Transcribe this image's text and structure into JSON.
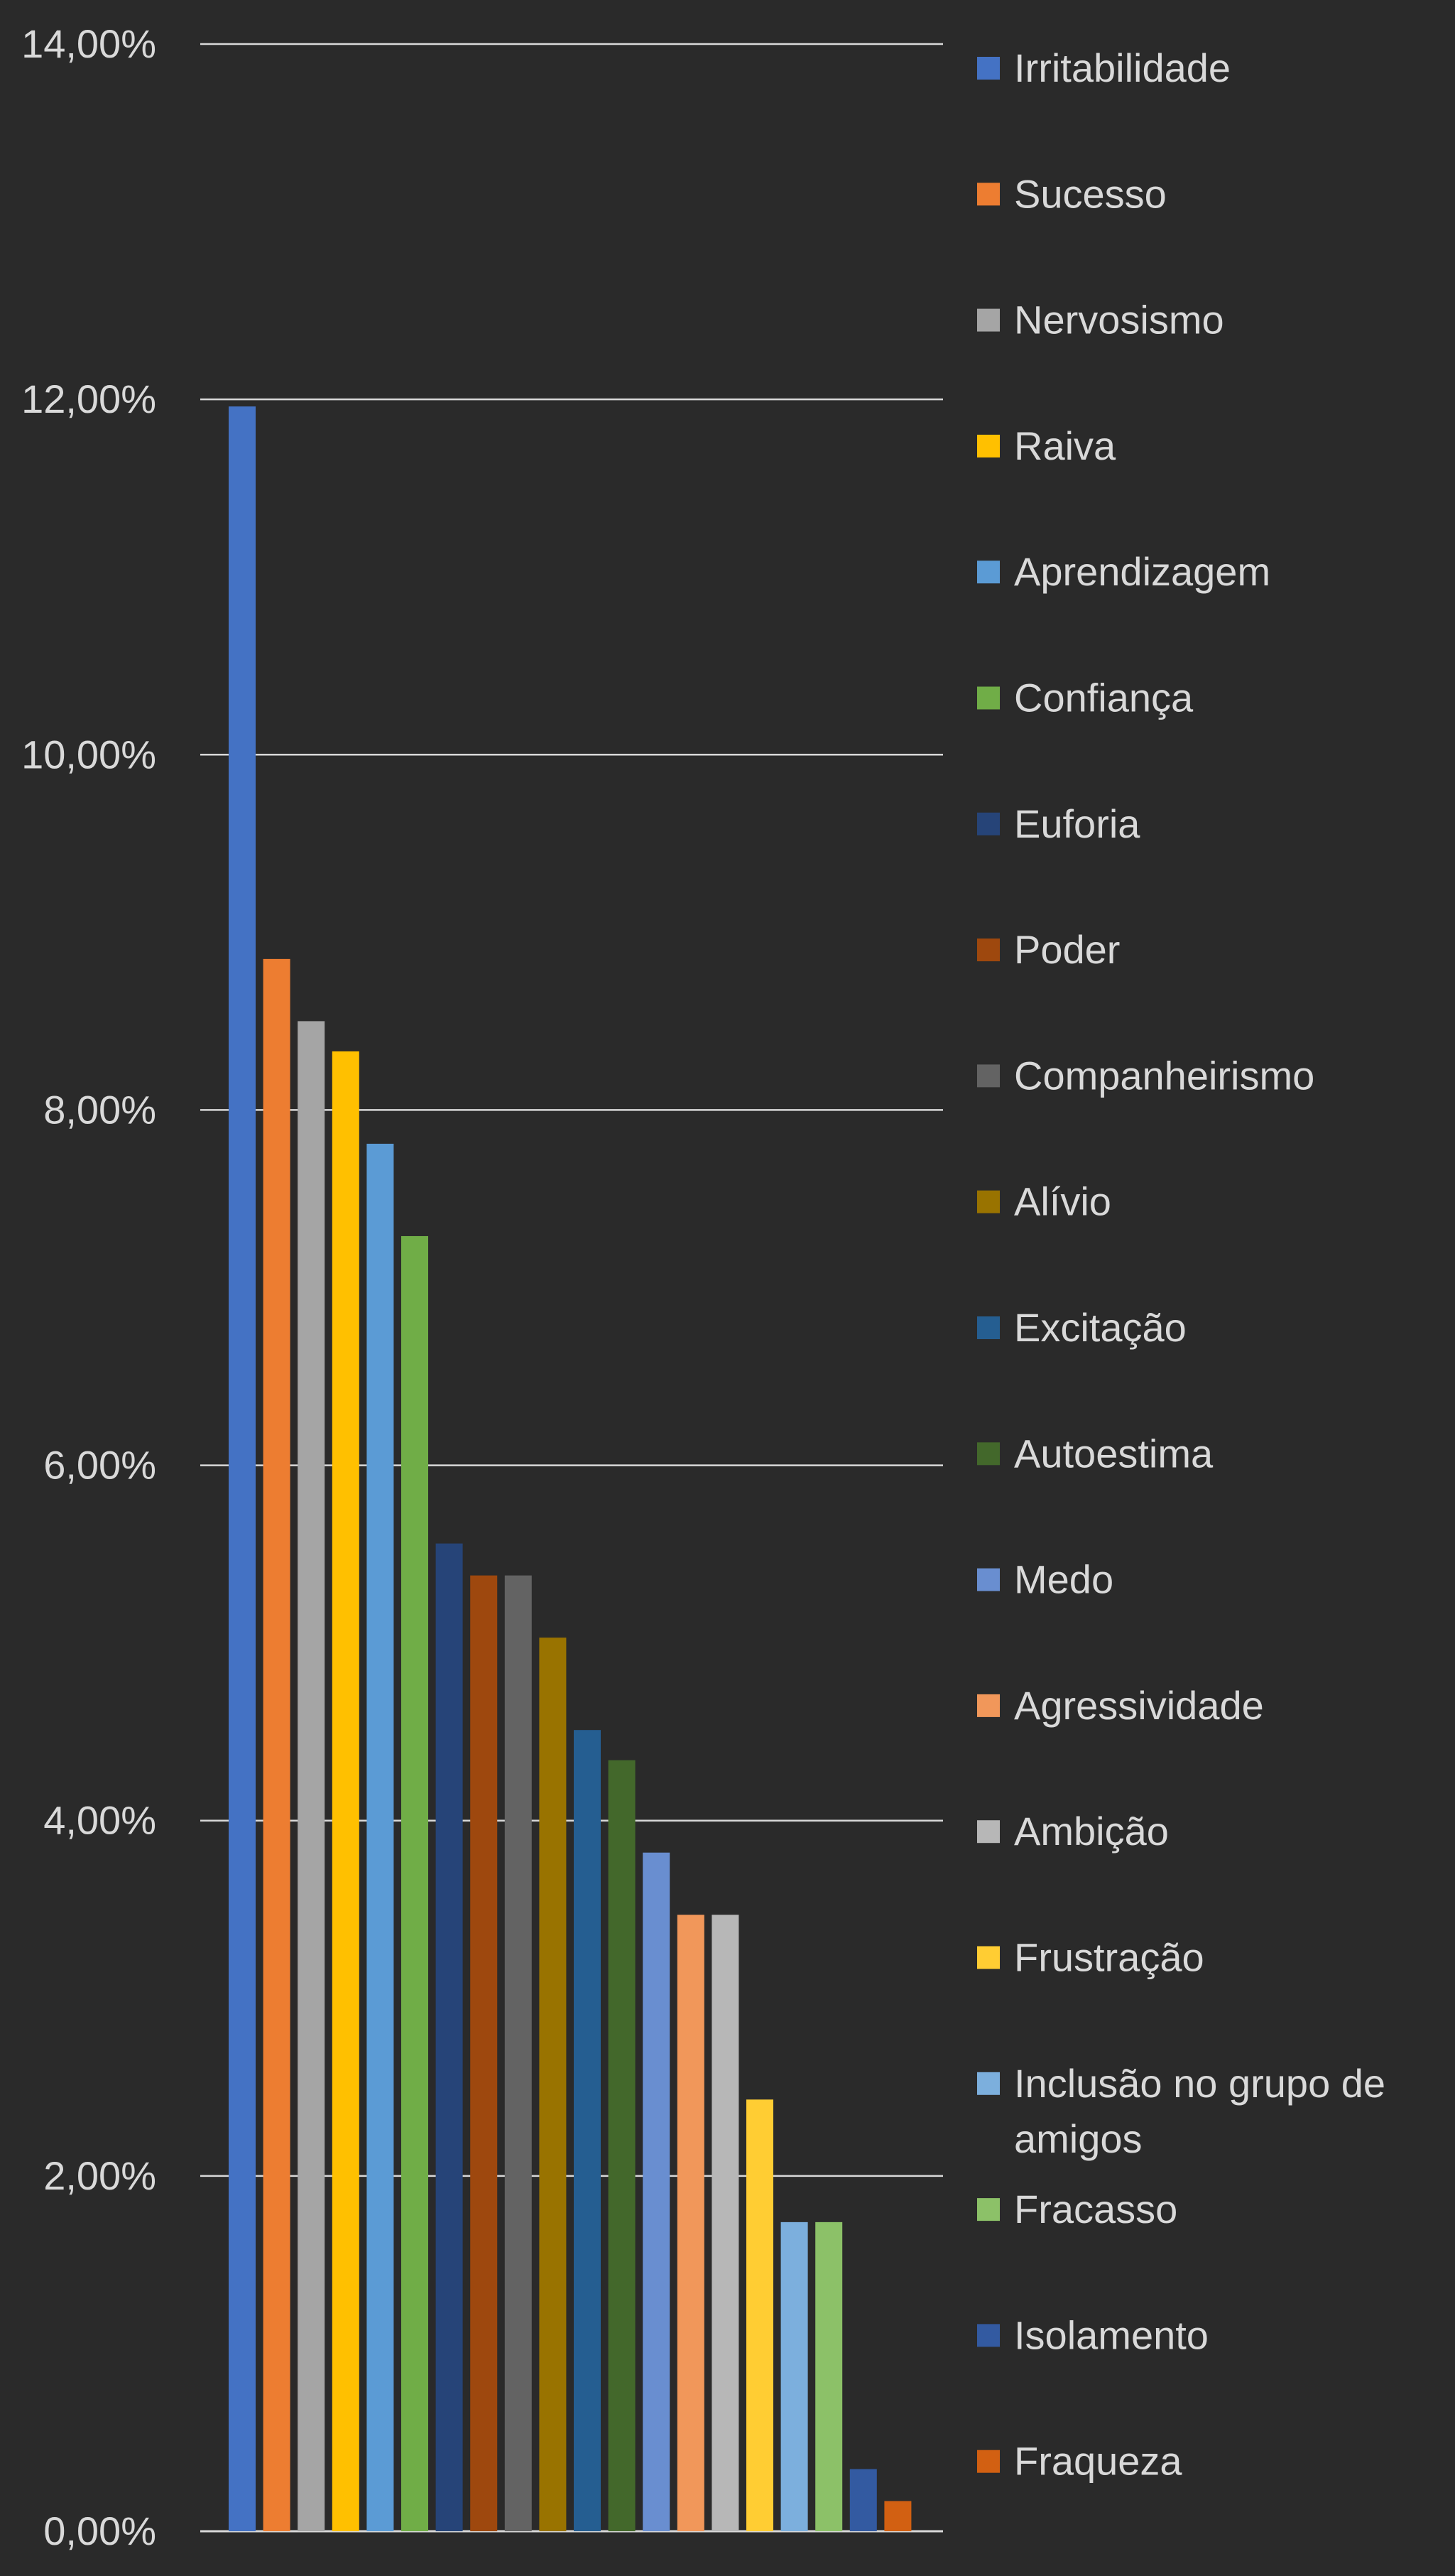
{
  "chart_data": {
    "type": "bar",
    "title": "",
    "xlabel": "",
    "ylabel": "",
    "ylim": [
      0,
      14
    ],
    "y_ticks": [
      "0,00%",
      "2,00%",
      "4,00%",
      "6,00%",
      "8,00%",
      "10,00%",
      "12,00%",
      "14,00%"
    ],
    "grid": true,
    "legend_position": "right",
    "background": "#2a2a2a",
    "grid_color": "#d9d9d9",
    "text_color": "#d9d9d9",
    "series": [
      {
        "name": "Irritabilidade",
        "value": 11.96,
        "color": "#4472c4"
      },
      {
        "name": "Sucesso",
        "value": 8.85,
        "color": "#ed7d31"
      },
      {
        "name": "Nervosismo",
        "value": 8.5,
        "color": "#a5a5a5"
      },
      {
        "name": "Raiva",
        "value": 8.33,
        "color": "#ffc000"
      },
      {
        "name": "Aprendizagem",
        "value": 7.81,
        "color": "#5b9bd5"
      },
      {
        "name": "Confiança",
        "value": 7.29,
        "color": "#70ad47"
      },
      {
        "name": "Euforia",
        "value": 5.56,
        "color": "#264478"
      },
      {
        "name": "Poder",
        "value": 5.38,
        "color": "#9e480e"
      },
      {
        "name": "Companheirismo",
        "value": 5.38,
        "color": "#636363"
      },
      {
        "name": "Alívio",
        "value": 5.03,
        "color": "#997300"
      },
      {
        "name": "Excitação",
        "value": 4.51,
        "color": "#255e91"
      },
      {
        "name": "Autoestima",
        "value": 4.34,
        "color": "#43682b"
      },
      {
        "name": "Medo",
        "value": 3.82,
        "color": "#698ed0"
      },
      {
        "name": "Agressividade",
        "value": 3.47,
        "color": "#f1975a"
      },
      {
        "name": "Ambição",
        "value": 3.47,
        "color": "#b7b7b7"
      },
      {
        "name": "Frustração",
        "value": 2.43,
        "color": "#ffcd33"
      },
      {
        "name": "Inclusão no grupo de amigos",
        "value": 1.74,
        "color": "#7cafdd"
      },
      {
        "name": "Fracasso",
        "value": 1.74,
        "color": "#8cc168"
      },
      {
        "name": "Isolamento",
        "value": 0.35,
        "color": "#335aa1"
      },
      {
        "name": "Fraqueza",
        "value": 0.17,
        "color": "#d26012"
      }
    ]
  }
}
